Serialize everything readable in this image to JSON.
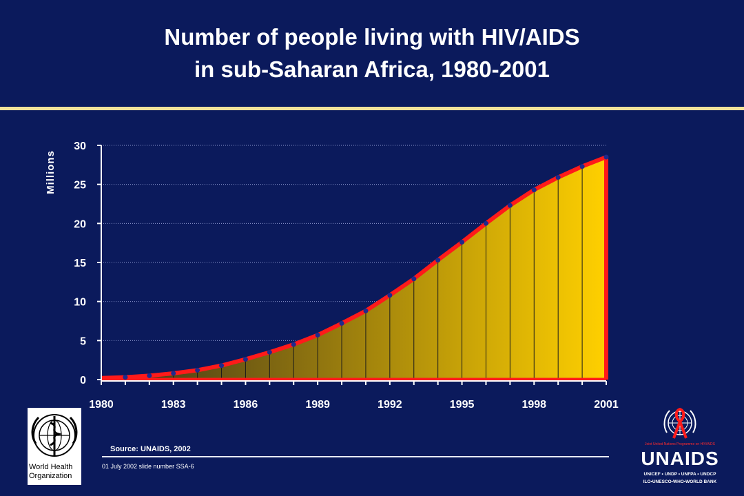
{
  "title": {
    "line1": "Number of people living with HIV/AIDS",
    "line2": "in sub-Saharan Africa, 1980-2001"
  },
  "source": "Source:  UNAIDS, 2002",
  "slide_note": "01 July 2002 slide number SSA-6",
  "logos": {
    "who": {
      "icon": "who-emblem-icon",
      "line1": "World Health",
      "line2": "Organization"
    },
    "unaids": {
      "icon": "un-emblem-red-ribbon-icon",
      "tagline": "Joint United Nations Programme on HIV/AIDS",
      "wordmark": "UNAIDS",
      "cosponsors1": "UNICEF • UNDP • UNFPA • UNDCP",
      "cosponsors2": "ILO•UNESCO•WHO•WORLD BANK"
    }
  },
  "colors": {
    "background": "#0b1a5c",
    "rule": "#f2e39a",
    "curve": "#ff1a1a",
    "fill_light": "#ffd000",
    "fill_dark": "#6e5a10",
    "marker": "#1f2a8c"
  },
  "chart_data": {
    "type": "area",
    "title": "",
    "xlabel": "",
    "ylabel": "Millions",
    "ylim": [
      0,
      30
    ],
    "yticks": [
      0,
      5,
      10,
      15,
      20,
      25,
      30
    ],
    "xticks": [
      1980,
      1983,
      1986,
      1989,
      1992,
      1995,
      1998,
      2001
    ],
    "grid": "horizontal dotted",
    "x": [
      1980,
      1981,
      1982,
      1983,
      1984,
      1985,
      1986,
      1987,
      1988,
      1989,
      1990,
      1991,
      1992,
      1993,
      1994,
      1995,
      1996,
      1997,
      1998,
      1999,
      2000,
      2001
    ],
    "y": [
      0.2,
      0.3,
      0.5,
      0.8,
      1.2,
      1.8,
      2.6,
      3.5,
      4.5,
      5.7,
      7.2,
      8.8,
      10.8,
      12.9,
      15.3,
      17.6,
      20.0,
      22.3,
      24.3,
      25.9,
      27.3,
      28.5
    ]
  }
}
